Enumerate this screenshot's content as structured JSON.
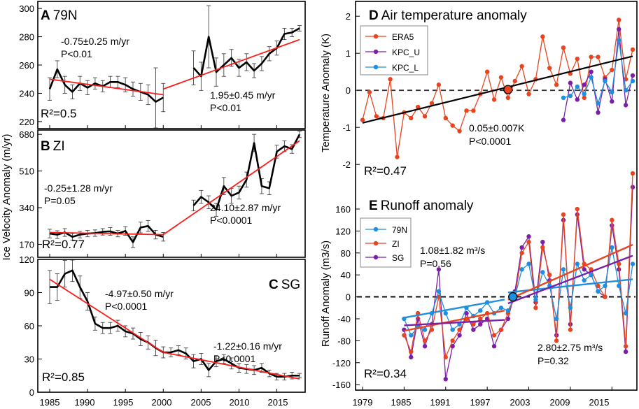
{
  "colors": {
    "black": "#000000",
    "red": "#ff1a1a",
    "orange_red": "#e8441f",
    "purple": "#7a1fa6",
    "blue": "#1e8fe0",
    "dashed": "#333333"
  },
  "left_axis": {
    "ylabel": "Ice Velocity Anomaly (m/yr)",
    "xticks": [
      "1985",
      "1990",
      "1995",
      "2000",
      "2005",
      "2010",
      "2015"
    ]
  },
  "right_axis": {
    "xticks": [
      "1979",
      "1985",
      "1991",
      "1997",
      "2003",
      "2009",
      "2015"
    ]
  },
  "chart_data": [
    {
      "id": "A",
      "type": "line",
      "panel_letter": "A",
      "title": "79N",
      "ylim": [
        215,
        305
      ],
      "yticks": [
        "220",
        "240",
        "260",
        "280",
        "300"
      ],
      "years": [
        1985,
        1986,
        1987,
        1988,
        1989,
        1990,
        1991,
        1992,
        1993,
        1994,
        1995,
        1996,
        1997,
        1998,
        1999,
        2000,
        2004,
        2005,
        2006,
        2007,
        2008,
        2009,
        2010,
        2011,
        2012,
        2013,
        2014,
        2015,
        2016,
        2017,
        2018
      ],
      "values": [
        243,
        257,
        246,
        241,
        247,
        244,
        247,
        245,
        248,
        248,
        246,
        243,
        241,
        239,
        234,
        237,
        258,
        252,
        280,
        255,
        260,
        265,
        258,
        262,
        256,
        261,
        268,
        272,
        282,
        283,
        286
      ],
      "errors": [
        8,
        6,
        6,
        5,
        5,
        5,
        4,
        4,
        4,
        4,
        5,
        5,
        6,
        7,
        24,
        10,
        12,
        10,
        22,
        10,
        8,
        6,
        6,
        6,
        5,
        5,
        5,
        5,
        4,
        3,
        2
      ],
      "trend1": {
        "x": [
          1985,
          2000
        ],
        "y": [
          250,
          239
        ]
      },
      "trend2": {
        "x": [
          2000,
          2018
        ],
        "y": [
          243,
          278
        ]
      },
      "annotations": {
        "trend1_rate": "-0.75±0.25 m/yr",
        "trend1_p": "P<0.01",
        "trend2_rate": "1.95±0.45 m/yr",
        "trend2_p": "P<0.01",
        "r2": "R²=0.5"
      }
    },
    {
      "id": "B",
      "type": "line",
      "panel_letter": "B",
      "title": "ZI",
      "ylim": [
        110,
        700
      ],
      "yticks": [
        "170",
        "340",
        "510",
        "680"
      ],
      "years": [
        1985,
        1986,
        1987,
        1988,
        1989,
        1990,
        1991,
        1992,
        1993,
        1994,
        1995,
        1996,
        1997,
        1998,
        1999,
        2000,
        2004,
        2005,
        2006,
        2007,
        2008,
        2009,
        2010,
        2011,
        2012,
        2013,
        2014,
        2015,
        2016,
        2017,
        2018
      ],
      "values": [
        220,
        215,
        225,
        205,
        215,
        220,
        222,
        228,
        230,
        220,
        232,
        180,
        248,
        255,
        215,
        205,
        350,
        390,
        365,
        330,
        440,
        395,
        410,
        470,
        640,
        440,
        430,
        600,
        625,
        612,
        680
      ],
      "errors": [
        20,
        18,
        18,
        15,
        15,
        15,
        15,
        15,
        18,
        15,
        20,
        25,
        25,
        25,
        20,
        20,
        25,
        30,
        30,
        30,
        40,
        35,
        30,
        35,
        40,
        35,
        30,
        30,
        25,
        20,
        15
      ],
      "trend1": {
        "x": [
          1985,
          2000
        ],
        "y": [
          225,
          215
        ]
      },
      "trend2": {
        "x": [
          2000,
          2018
        ],
        "y": [
          215,
          650
        ]
      },
      "annotations": {
        "trend1_rate": "-0.25±1.28 m/yr",
        "trend1_p": "P=0.05",
        "trend2_rate": "24.10±2.87 m/yr",
        "trend2_p": "P<0.0001",
        "r2": "R²=0.77"
      }
    },
    {
      "id": "C",
      "type": "line",
      "panel_letter": "C",
      "title": "SG",
      "ylim": [
        0,
        120
      ],
      "yticks": [
        "0",
        "30",
        "60",
        "90",
        "120"
      ],
      "xlim": [
        1984.5,
        2018.5
      ],
      "years": [
        1985,
        1986,
        1987,
        1988,
        1989,
        1990,
        1991,
        1992,
        1993,
        1994,
        1995,
        1996,
        1997,
        1998,
        1999,
        2000,
        2001,
        2002,
        2003,
        2004,
        2005,
        2006,
        2007,
        2008,
        2009,
        2010,
        2011,
        2012,
        2013,
        2014,
        2015,
        2016,
        2017,
        2018
      ],
      "values": [
        95,
        95,
        107,
        110,
        95,
        82,
        62,
        58,
        58,
        60,
        55,
        53,
        48,
        45,
        40,
        36,
        36,
        38,
        35,
        28,
        30,
        20,
        28,
        30,
        26,
        22,
        21,
        20,
        22,
        17,
        14,
        14,
        15,
        15
      ],
      "errors": [
        15,
        12,
        12,
        10,
        10,
        8,
        6,
        5,
        5,
        5,
        5,
        5,
        6,
        6,
        7,
        5,
        4,
        4,
        5,
        6,
        5,
        6,
        5,
        4,
        5,
        4,
        4,
        4,
        4,
        3,
        3,
        3,
        3,
        2
      ],
      "trend1": {
        "x": [
          1985,
          2000
        ],
        "y": [
          102,
          36
        ]
      },
      "trend2": {
        "x": [
          2000,
          2018
        ],
        "y": [
          36,
          12
        ]
      },
      "annotations": {
        "trend1_rate": "-4.97±0.50 m/yr",
        "trend1_p": "P<0.0001",
        "trend2_rate": "-1.22±0.16 m/yr",
        "trend2_p": "P<0.0001",
        "r2": "R²=0.85"
      }
    },
    {
      "id": "D",
      "type": "line",
      "panel_letter": "D",
      "title": "Air temperature anomaly",
      "ylabel": "Temperature Anomaly (K)",
      "ylim": [
        -2.6,
        2.4
      ],
      "yticks": [
        "2",
        "1",
        "0",
        "-1",
        "-2"
      ],
      "legend": [
        "ERA5",
        "KPC_U",
        "KPC_L"
      ],
      "series": [
        {
          "name": "ERA5",
          "color": "#e8441f",
          "x": [
            1979,
            1980,
            1981,
            1982,
            1983,
            1984,
            1985,
            1986,
            1987,
            1988,
            1989,
            1990,
            1991,
            1992,
            1993,
            1994,
            1995,
            1996,
            1997,
            1998,
            1999,
            2000,
            2001,
            2002,
            2003,
            2004,
            2005,
            2006,
            2007,
            2008,
            2009,
            2010,
            2011,
            2012,
            2013,
            2014,
            2015,
            2016,
            2017,
            2018
          ],
          "y": [
            -0.8,
            -0.05,
            -0.7,
            -0.75,
            0.3,
            -1.8,
            -0.6,
            -0.75,
            -0.45,
            -0.7,
            -0.35,
            0.15,
            -0.75,
            -0.95,
            -1.1,
            -0.55,
            -0.55,
            -0.1,
            0.5,
            -0.25,
            0.35,
            -0.2,
            0.25,
            0.65,
            -0.1,
            0.3,
            1.45,
            0.6,
            0.15,
            1.15,
            0.45,
            0.85,
            -0.2,
            0.9,
            0.9,
            0.35,
            0.55,
            1.9,
            0.3,
            1.1
          ]
        },
        {
          "name": "KPC_U",
          "color": "#7a1fa6",
          "x": [
            2008,
            2009,
            2010,
            2011,
            2012,
            2013,
            2014,
            2015,
            2016,
            2017,
            2018
          ],
          "y": [
            -0.8,
            0.2,
            -0.25,
            0.15,
            0.5,
            -0.6,
            0.3,
            -0.3,
            1.65,
            -0.4,
            0.4
          ]
        },
        {
          "name": "KPC_L",
          "color": "#1e8fe0",
          "x": [
            2008,
            2009,
            2010,
            2011,
            2012,
            2013,
            2014,
            2015,
            2016,
            2017,
            2018
          ],
          "y": [
            -0.2,
            -0.15,
            0.1,
            -0.1,
            0.35,
            -0.35,
            0.25,
            -0.05,
            1.35,
            0.0,
            0.25
          ]
        }
      ],
      "trend": {
        "x": [
          1979,
          2018
        ],
        "y": [
          -0.88,
          0.92
        ]
      },
      "breakpoint": {
        "x": 2000,
        "y": 0.02
      },
      "annotations": {
        "rate": "0.05±0.007K",
        "p": "P<0.0001",
        "r2": "R²=0.47"
      }
    },
    {
      "id": "E",
      "type": "line",
      "panel_letter": "E",
      "title": "Runoff anomaly",
      "ylabel": "Runoff Anomaly (m3/s)",
      "ylim": [
        -170,
        225
      ],
      "yticks": [
        "160",
        "120",
        "80",
        "40",
        "0",
        "-40",
        "-80",
        "-120",
        "-160"
      ],
      "legend": [
        "79N",
        "ZI",
        "SG"
      ],
      "series": [
        {
          "name": "79N",
          "color": "#1e8fe0",
          "x": [
            1985,
            1986,
            1987,
            1988,
            1989,
            1990,
            1991,
            1992,
            1993,
            1994,
            1995,
            1996,
            1997,
            1998,
            1999,
            2000,
            2001,
            2002,
            2003,
            2004,
            2005,
            2006,
            2007,
            2008,
            2009,
            2010,
            2011,
            2012,
            2013,
            2014,
            2015,
            2016,
            2017,
            2018
          ],
          "y": [
            -40,
            -70,
            -55,
            -60,
            -30,
            10,
            -30,
            -60,
            -50,
            -20,
            -35,
            -25,
            -10,
            -30,
            -20,
            -25,
            0,
            50,
            60,
            -5,
            45,
            20,
            -40,
            50,
            -20,
            60,
            30,
            40,
            10,
            20,
            90,
            20,
            -30,
            60
          ]
        },
        {
          "name": "ZI",
          "color": "#e8441f",
          "x": [
            1985,
            1986,
            1987,
            1988,
            1989,
            1990,
            1991,
            1992,
            1993,
            1994,
            1995,
            1996,
            1997,
            1998,
            1999,
            2000,
            2001,
            2002,
            2003,
            2004,
            2005,
            2006,
            2007,
            2008,
            2009,
            2010,
            2011,
            2012,
            2013,
            2014,
            2015,
            2016,
            2017,
            2018
          ],
          "y": [
            -70,
            -100,
            -30,
            -80,
            -60,
            0,
            -110,
            -80,
            -60,
            -40,
            -50,
            -40,
            -30,
            -70,
            -60,
            -30,
            0,
            80,
            100,
            -20,
            90,
            40,
            -80,
            150,
            -60,
            160,
            60,
            50,
            20,
            0,
            140,
            60,
            -90,
            230
          ]
        },
        {
          "name": "SG",
          "color": "#7a1fa6",
          "x": [
            1985,
            1986,
            1987,
            1988,
            1989,
            1990,
            1991,
            1992,
            1993,
            1994,
            1995,
            1996,
            1997,
            1998,
            1999,
            2000,
            2001,
            2002,
            2003,
            2004,
            2005,
            2006,
            2007,
            2008,
            2009,
            2010,
            2011,
            2012,
            2013,
            2014,
            2015,
            2016,
            2017,
            2018
          ],
          "y": [
            -60,
            -110,
            -40,
            -90,
            -50,
            50,
            -150,
            -90,
            -70,
            -30,
            -60,
            -50,
            -40,
            -90,
            -60,
            -40,
            10,
            90,
            110,
            -10,
            100,
            30,
            -70,
            140,
            -50,
            150,
            50,
            40,
            10,
            0,
            130,
            50,
            -100,
            200
          ]
        }
      ],
      "trend_lines": [
        {
          "color": "#1e8fe0",
          "x": [
            1985,
            1999.5
          ],
          "y": [
            -38,
            -5
          ]
        },
        {
          "color": "#e8441f",
          "x": [
            1985,
            1999.5
          ],
          "y": [
            -62,
            -25
          ]
        },
        {
          "color": "#7a1fa6",
          "x": [
            1985,
            1999.5
          ],
          "y": [
            -52,
            -42
          ]
        },
        {
          "color": "#1e8fe0",
          "x": [
            2000,
            2018
          ],
          "y": [
            8,
            32
          ]
        },
        {
          "color": "#e8441f",
          "x": [
            2000,
            2018
          ],
          "y": [
            -5,
            95
          ]
        },
        {
          "color": "#7a1fa6",
          "x": [
            2000,
            2018
          ],
          "y": [
            -12,
            75
          ]
        }
      ],
      "breakpoint": {
        "x": 2000.7,
        "y": 0
      },
      "annotations": {
        "rate1": "1.08±1.82 m³/s",
        "p1": "P=0.56",
        "rate2": "2.80±2.75 m³/s",
        "p2": "P=0.32",
        "r2": "R²=0.34"
      }
    }
  ]
}
